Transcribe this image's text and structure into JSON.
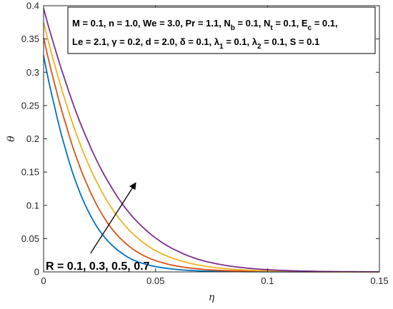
{
  "chart_data": {
    "type": "line",
    "title": "",
    "xlabel": "η",
    "ylabel": "θ",
    "xlim": [
      0,
      0.15
    ],
    "ylim": [
      0,
      0.4
    ],
    "x_ticks": [
      {
        "v": 0,
        "label": "0"
      },
      {
        "v": 0.05,
        "label": "0.05"
      },
      {
        "v": 0.1,
        "label": "0.1"
      },
      {
        "v": 0.15,
        "label": "0.15"
      }
    ],
    "y_ticks": [
      {
        "v": 0,
        "label": "0"
      },
      {
        "v": 0.05,
        "label": "0.05"
      },
      {
        "v": 0.1,
        "label": "0.1"
      },
      {
        "v": 0.15,
        "label": "0.15"
      },
      {
        "v": 0.2,
        "label": "0.2"
      },
      {
        "v": 0.25,
        "label": "0.25"
      },
      {
        "v": 0.3,
        "label": "0.3"
      },
      {
        "v": 0.35,
        "label": "0.35"
      },
      {
        "v": 0.4,
        "label": "0.4"
      }
    ],
    "grid": false,
    "x": [
      0,
      0.005,
      0.01,
      0.015,
      0.02,
      0.025,
      0.03,
      0.035,
      0.04,
      0.045,
      0.05,
      0.06,
      0.07,
      0.08,
      0.09,
      0.1,
      0.11,
      0.12,
      0.13,
      0.14,
      0.15
    ],
    "series": [
      {
        "color": "#0072BD",
        "values": [
          0.325,
          0.247,
          0.182,
          0.13,
          0.091,
          0.062,
          0.042,
          0.028,
          0.018,
          0.012,
          0.008,
          0.0035,
          0.0015,
          0.0007,
          0.0003,
          0.0002,
          0.0001,
          0.0001,
          0,
          0,
          0
        ]
      },
      {
        "color": "#D95319",
        "values": [
          0.352,
          0.282,
          0.221,
          0.169,
          0.127,
          0.093,
          0.067,
          0.048,
          0.034,
          0.024,
          0.017,
          0.0085,
          0.0042,
          0.0021,
          0.0011,
          0.0006,
          0.0003,
          0.0002,
          0.0001,
          0,
          0
        ]
      },
      {
        "color": "#EDB120",
        "values": [
          0.375,
          0.311,
          0.254,
          0.204,
          0.162,
          0.127,
          0.098,
          0.075,
          0.057,
          0.043,
          0.032,
          0.018,
          0.0098,
          0.0053,
          0.0028,
          0.0015,
          0.0008,
          0.0004,
          0.0002,
          0.0001,
          0
        ]
      },
      {
        "color": "#7E2F8E",
        "values": [
          0.396,
          0.337,
          0.284,
          0.236,
          0.195,
          0.159,
          0.129,
          0.103,
          0.082,
          0.065,
          0.051,
          0.031,
          0.018,
          0.0105,
          0.006,
          0.0033,
          0.0018,
          0.001,
          0.0005,
          0.0003,
          0.0001
        ]
      }
    ],
    "parameters": {
      "line1": [
        {
          "name": "M",
          "value": "0.1"
        },
        {
          "name": "n",
          "value": "1.0"
        },
        {
          "name": "We",
          "value": "3.0"
        },
        {
          "name": "Pr",
          "value": "1.1"
        },
        {
          "name": "N",
          "sub": "b",
          "value": "0.1"
        },
        {
          "name": "N",
          "sub": "t",
          "value": "0.1"
        },
        {
          "name": "E",
          "sub": "c",
          "value": "0.1,"
        }
      ],
      "line2": [
        {
          "name": "Le",
          "value": "2.1"
        },
        {
          "name": "γ",
          "value": "0.2"
        },
        {
          "name": "d",
          "value": "2.0"
        },
        {
          "name": "δ",
          "value": "0.1"
        },
        {
          "name": "λ",
          "sub": "1",
          "value": "0.1"
        },
        {
          "name": "λ",
          "sub": "2",
          "value": "0.1"
        },
        {
          "name": "S",
          "value": "0.1"
        }
      ]
    },
    "annotation": {
      "text": "R = 0.1, 0.3, 0.5, 0.7",
      "arrow_from": [
        0.021,
        0.028
      ],
      "arrow_to": [
        0.041,
        0.133
      ]
    }
  }
}
